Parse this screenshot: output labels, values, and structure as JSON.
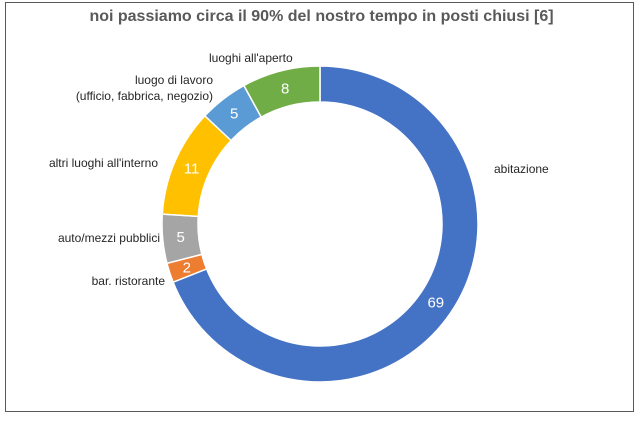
{
  "chart_data": {
    "type": "pie",
    "variant": "donut",
    "title": "noi passiamo circa il 90% del nostro tempo in posti chiusi [6]",
    "slices": [
      {
        "label": "abitazione",
        "value": 69,
        "color": "#4472C4"
      },
      {
        "label": "bar. ristorante",
        "value": 2,
        "color": "#ED7D31"
      },
      {
        "label": "auto/mezzi pubblici",
        "value": 5,
        "color": "#A5A5A5"
      },
      {
        "label": "altri luoghi all'interno",
        "value": 11,
        "color": "#FFC000"
      },
      {
        "label": "luogo di lavoro (ufficio, fabbrica, negozio)",
        "label_lines": [
          "luogo di lavoro",
          "(ufficio, fabbrica, negozio)"
        ],
        "value": 5,
        "color": "#5B9BD5"
      },
      {
        "label": "luoghi all'aperto",
        "value": 8,
        "color": "#70AD47"
      }
    ]
  }
}
